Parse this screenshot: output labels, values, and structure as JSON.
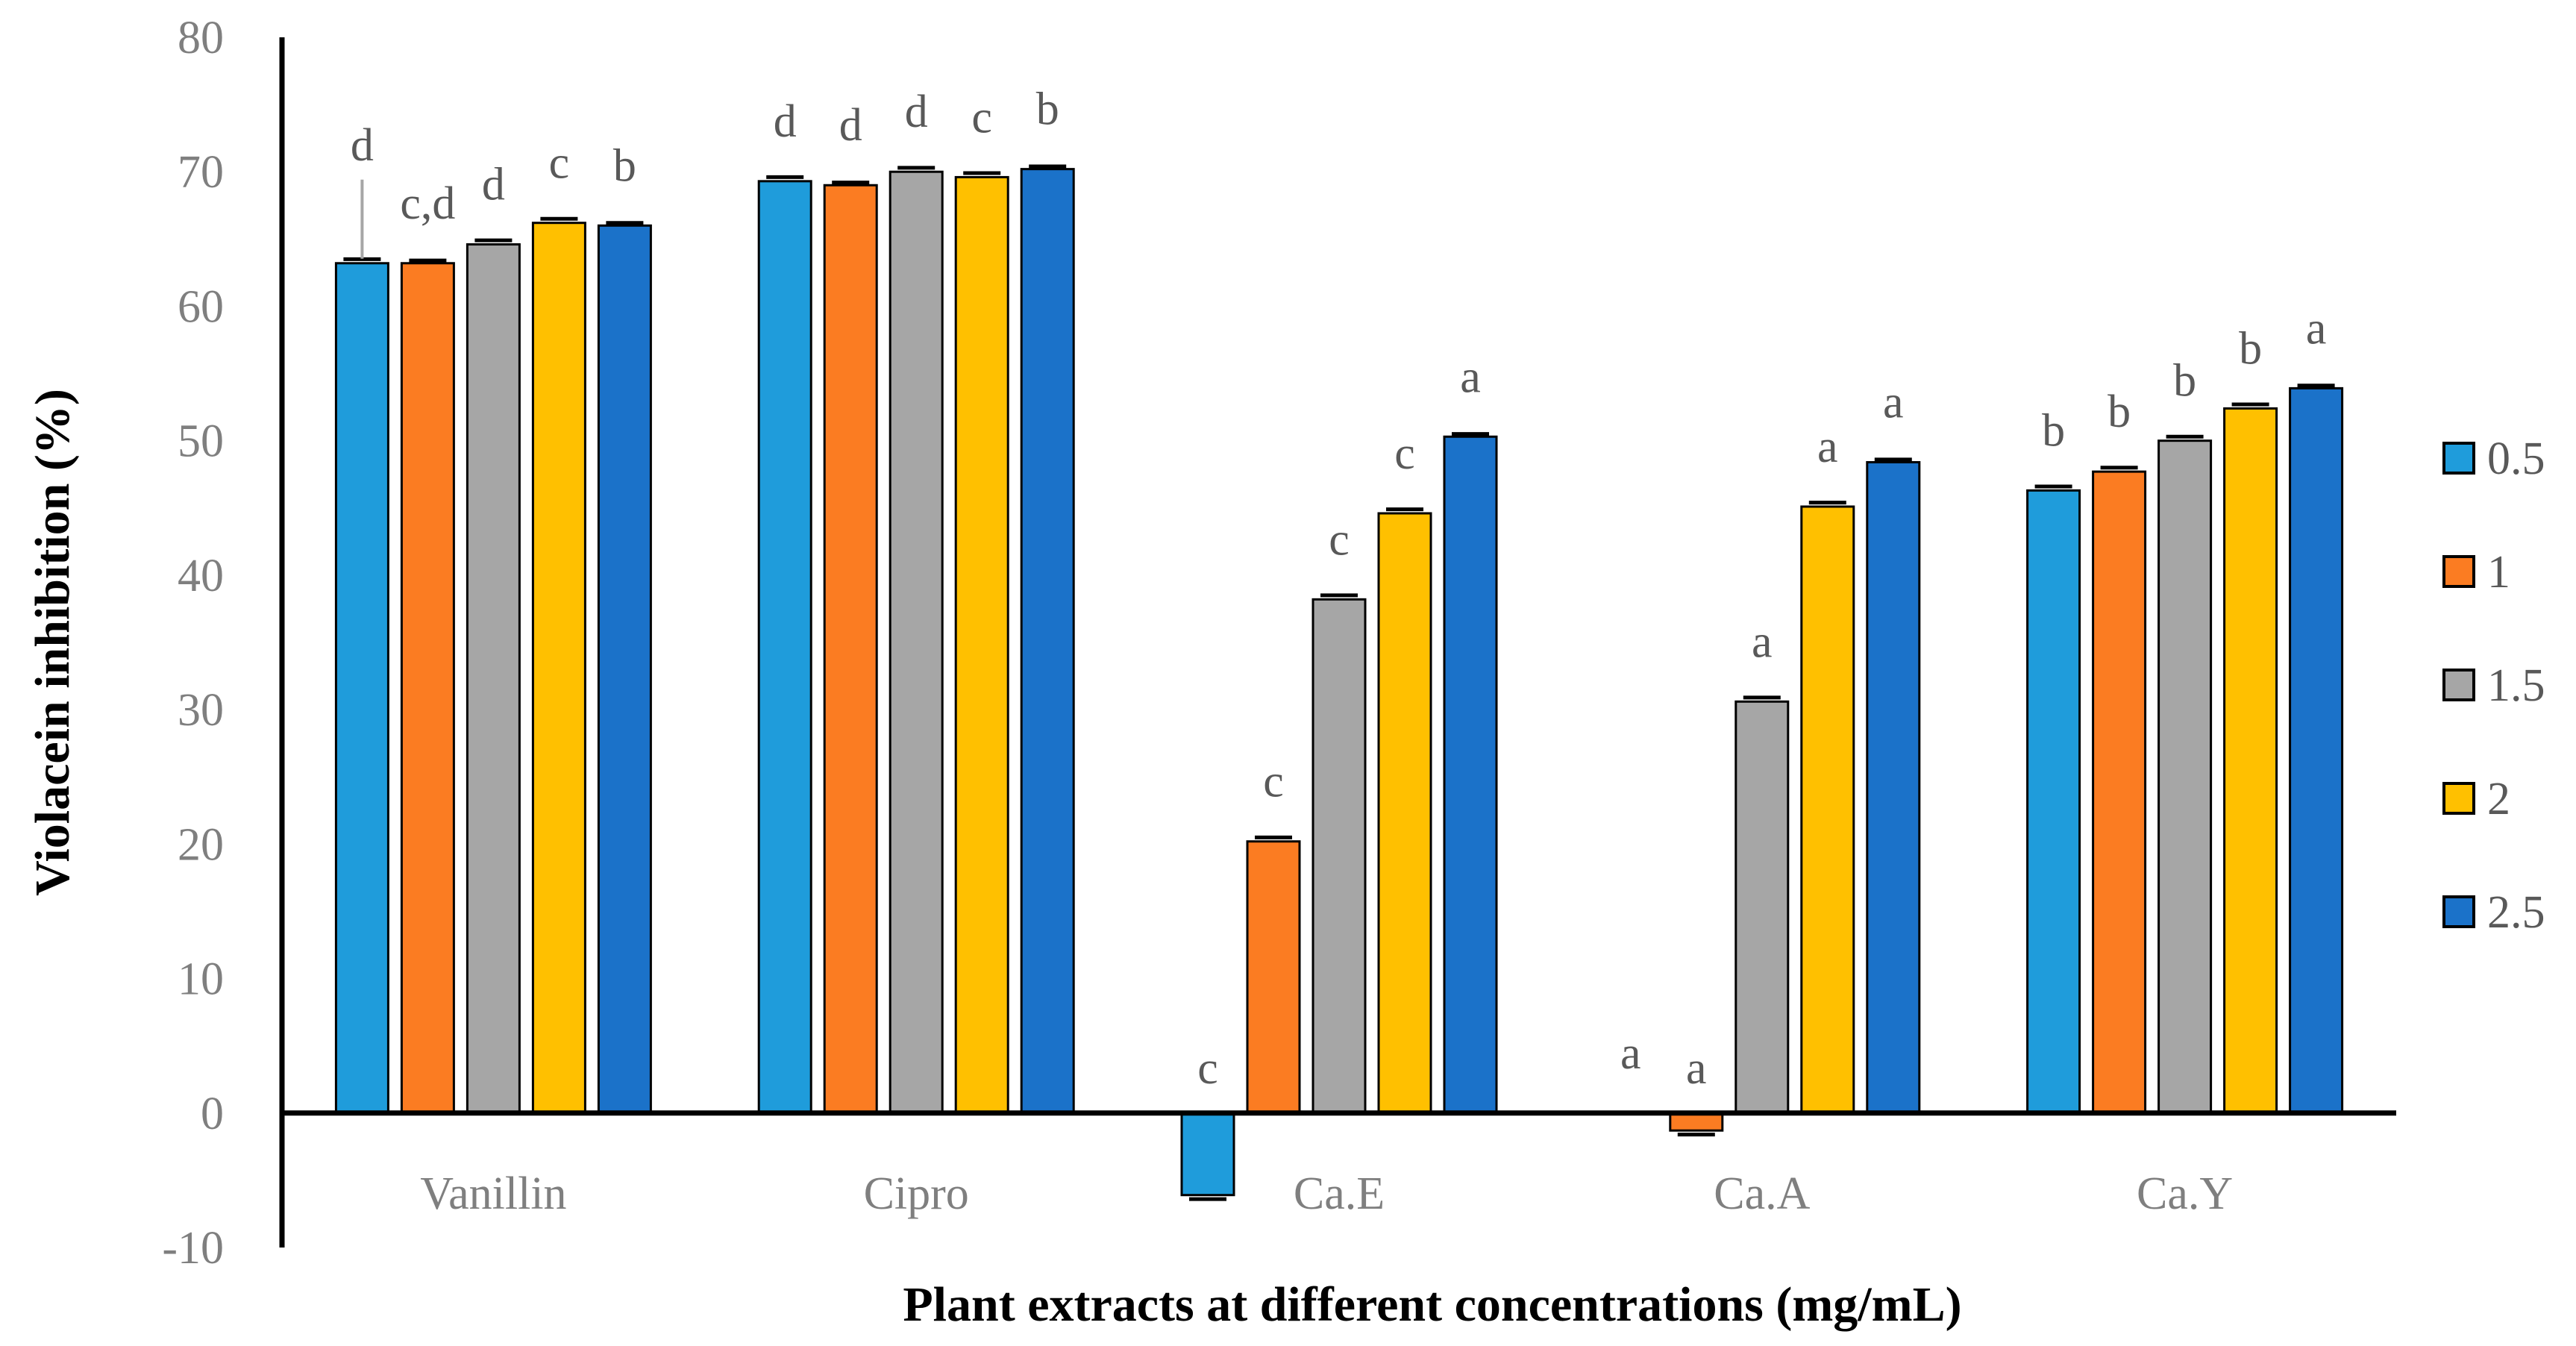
{
  "chart_data": {
    "type": "bar",
    "title": "",
    "xlabel": "Plant extracts at different concentrations (mg/mL)",
    "ylabel": "Violacein inhibition (%)",
    "ylim": [
      -10,
      80
    ],
    "yticks": [
      80,
      70,
      60,
      50,
      40,
      30,
      20,
      10,
      0,
      -10
    ],
    "categories": [
      "Vanillin",
      "Cipro",
      "Ca.E",
      "Ca.A",
      "Ca.Y"
    ],
    "series": [
      {
        "name": "0.5",
        "color": "#1f9cdb",
        "values": [
          63.2,
          69.3,
          -6.1,
          0,
          46.3
        ],
        "errors": [
          0.3,
          0.3,
          0.3,
          0,
          0.3
        ],
        "sig": [
          "d",
          "d",
          "c",
          "a",
          "b"
        ]
      },
      {
        "name": "1",
        "color": "#fb7c22",
        "values": [
          63.2,
          69.0,
          20.2,
          -1.3,
          47.7
        ],
        "errors": [
          0.2,
          0.2,
          0.3,
          0.3,
          0.3
        ],
        "sig": [
          "c,d",
          "d",
          "c",
          "a",
          "b"
        ]
      },
      {
        "name": "1.5",
        "color": "#a6a6a6",
        "values": [
          64.6,
          70.0,
          38.2,
          30.6,
          50.0
        ],
        "errors": [
          0.3,
          0.3,
          0.3,
          0.3,
          0.3
        ],
        "sig": [
          "d",
          "d",
          "c",
          "a",
          "b"
        ]
      },
      {
        "name": "2",
        "color": "#ffc000",
        "values": [
          66.2,
          69.6,
          44.6,
          45.1,
          52.4
        ],
        "errors": [
          0.3,
          0.3,
          0.3,
          0.3,
          0.3
        ],
        "sig": [
          "c",
          "c",
          "c",
          "a",
          "b"
        ]
      },
      {
        "name": "2.5",
        "color": "#1b72c9",
        "values": [
          66.0,
          70.2,
          50.3,
          48.4,
          53.9
        ],
        "errors": [
          0.2,
          0.2,
          0.2,
          0.2,
          0.2
        ],
        "sig": [
          "b",
          "b",
          "a",
          "a",
          "a"
        ]
      }
    ],
    "legend_position": "right",
    "grid": false
  }
}
